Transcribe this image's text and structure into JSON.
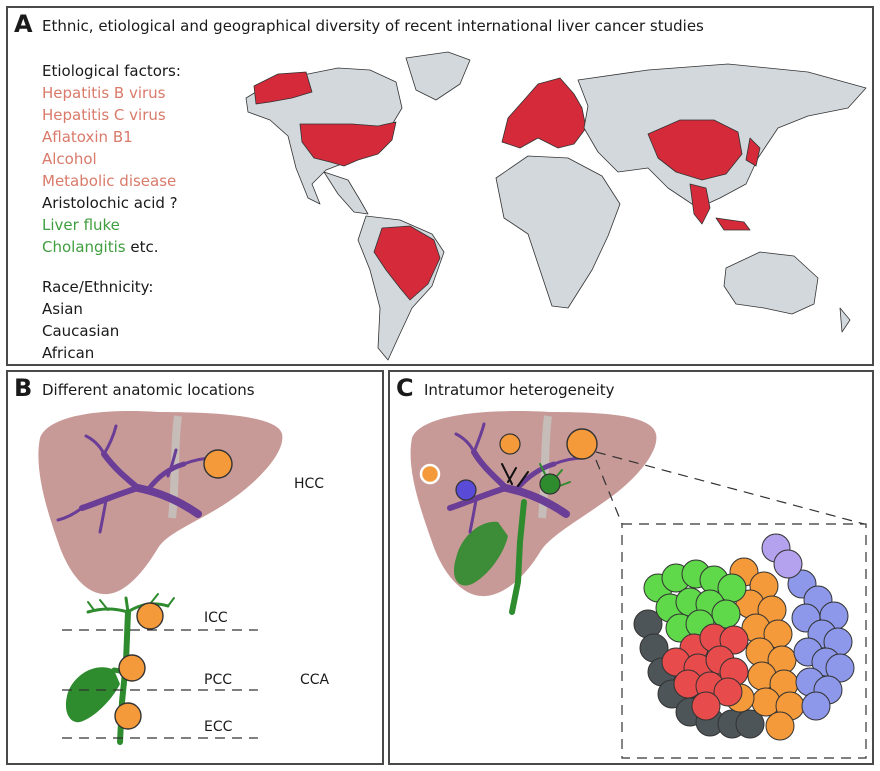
{
  "panel_a": {
    "letter": "A",
    "title": "Ethnic, etiological and geographical diversity of recent international liver cancer studies",
    "etiology_heading": "Etiological factors:",
    "factors": [
      {
        "text": "Hepatitis B virus",
        "color": "red"
      },
      {
        "text": "Hepatitis C virus",
        "color": "red"
      },
      {
        "text": "Aflatoxin B1",
        "color": "red"
      },
      {
        "text": "Alcohol",
        "color": "red"
      },
      {
        "text": "Metabolic disease",
        "color": "red"
      },
      {
        "text": "Aristolochic acid ?",
        "color": "black"
      },
      {
        "text": "Liver fluke",
        "color": "green"
      }
    ],
    "last_factor": "Cholangitis",
    "last_factor_suffix": "etc.",
    "race_heading": "Race/Ethnicity:",
    "races": [
      "Asian",
      "Caucasian",
      "African"
    ],
    "highlight_color": "#d42a3a",
    "land_color": "#d2d8dc"
  },
  "panel_b": {
    "letter": "B",
    "title": "Different anatomic locations",
    "hcc": "HCC",
    "icc": "ICC",
    "pcc": "PCC",
    "ecc": "ECC",
    "cca": "CCA"
  },
  "panel_c": {
    "letter": "C",
    "title": "Intratumor heterogeneity"
  },
  "colors": {
    "liver": "#c89a97",
    "duct": "#6a3d96",
    "gallbladder": "#2e8b2e",
    "tumor": "#f49a3a",
    "clone_green": "#5fd84a",
    "clone_red": "#e84b4b",
    "clone_blue": "#8e98ea",
    "clone_lilac": "#b4a2ee",
    "clone_dark": "#4d5559"
  }
}
